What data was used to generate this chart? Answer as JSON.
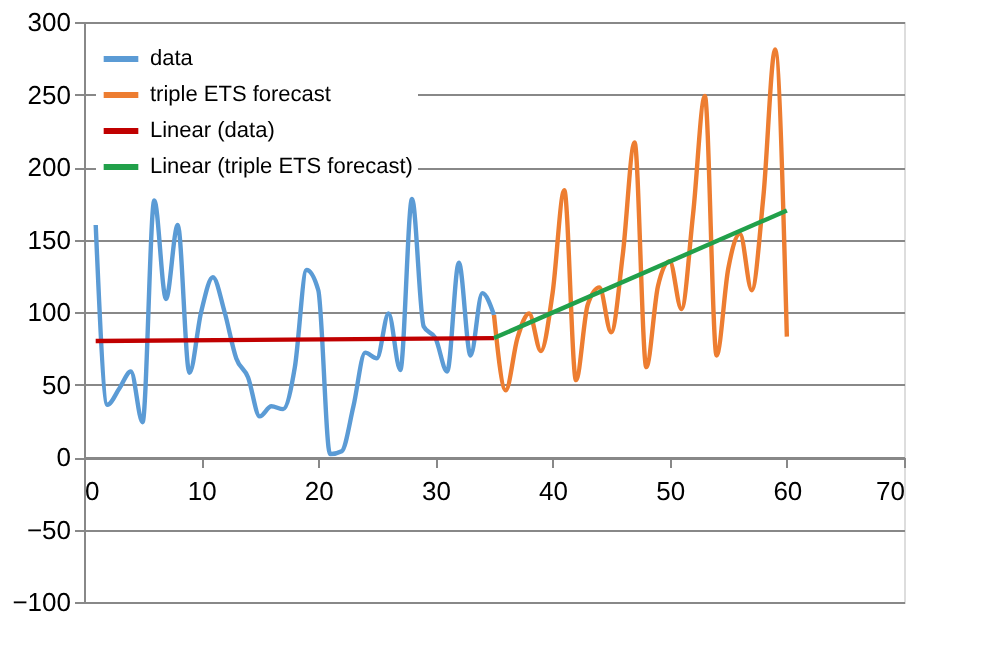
{
  "chart_data": {
    "type": "line",
    "xlim": [
      0,
      70
    ],
    "xticks": [
      0,
      10,
      20,
      30,
      40,
      50,
      60,
      70
    ],
    "ylim": [
      -100,
      300
    ],
    "yticks": [
      -100,
      -50,
      0,
      50,
      100,
      150,
      200,
      250,
      300
    ],
    "grid": "y",
    "legend": "top left",
    "marker": "none",
    "line_style": "solid",
    "series": [
      {
        "name": "data",
        "color": "#5b9bd5",
        "x": [
          1,
          2,
          3,
          4,
          5,
          6,
          7,
          8,
          9,
          10,
          11,
          12,
          13,
          14,
          15,
          16,
          17,
          18,
          19,
          20,
          21,
          22,
          23,
          24,
          25,
          26,
          27,
          28,
          29,
          30,
          31,
          32,
          33,
          34,
          35
        ],
        "values": [
          160,
          36,
          47,
          59,
          24,
          177,
          109,
          160,
          58,
          100,
          124,
          100,
          68,
          55,
          28,
          35,
          33,
          62,
          129,
          115,
          2,
          4,
          35,
          72,
          68,
          99,
          60,
          178,
          90,
          82,
          59,
          134,
          70,
          113,
          98
        ]
      },
      {
        "name": "triple ETS forecast",
        "color": "#ed7d31",
        "x": [
          35,
          36,
          37,
          38,
          39,
          40,
          41,
          42,
          43,
          44,
          45,
          46,
          47,
          48,
          49,
          50,
          51,
          52,
          53,
          54,
          55,
          56,
          57,
          58,
          59,
          60
        ],
        "values": [
          98,
          46,
          82,
          99,
          73,
          113,
          184,
          53,
          105,
          117,
          86,
          140,
          217,
          62,
          118,
          135,
          102,
          168,
          249,
          70,
          130,
          154,
          115,
          180,
          281,
          83
        ]
      },
      {
        "name": "Linear (data)",
        "color": "#c00000",
        "x": [
          1,
          35
        ],
        "values": [
          80,
          82
        ]
      },
      {
        "name": "Linear (triple ETS forecast)",
        "color": "#21a04a",
        "x": [
          35,
          60
        ],
        "values": [
          82,
          170
        ]
      }
    ]
  }
}
